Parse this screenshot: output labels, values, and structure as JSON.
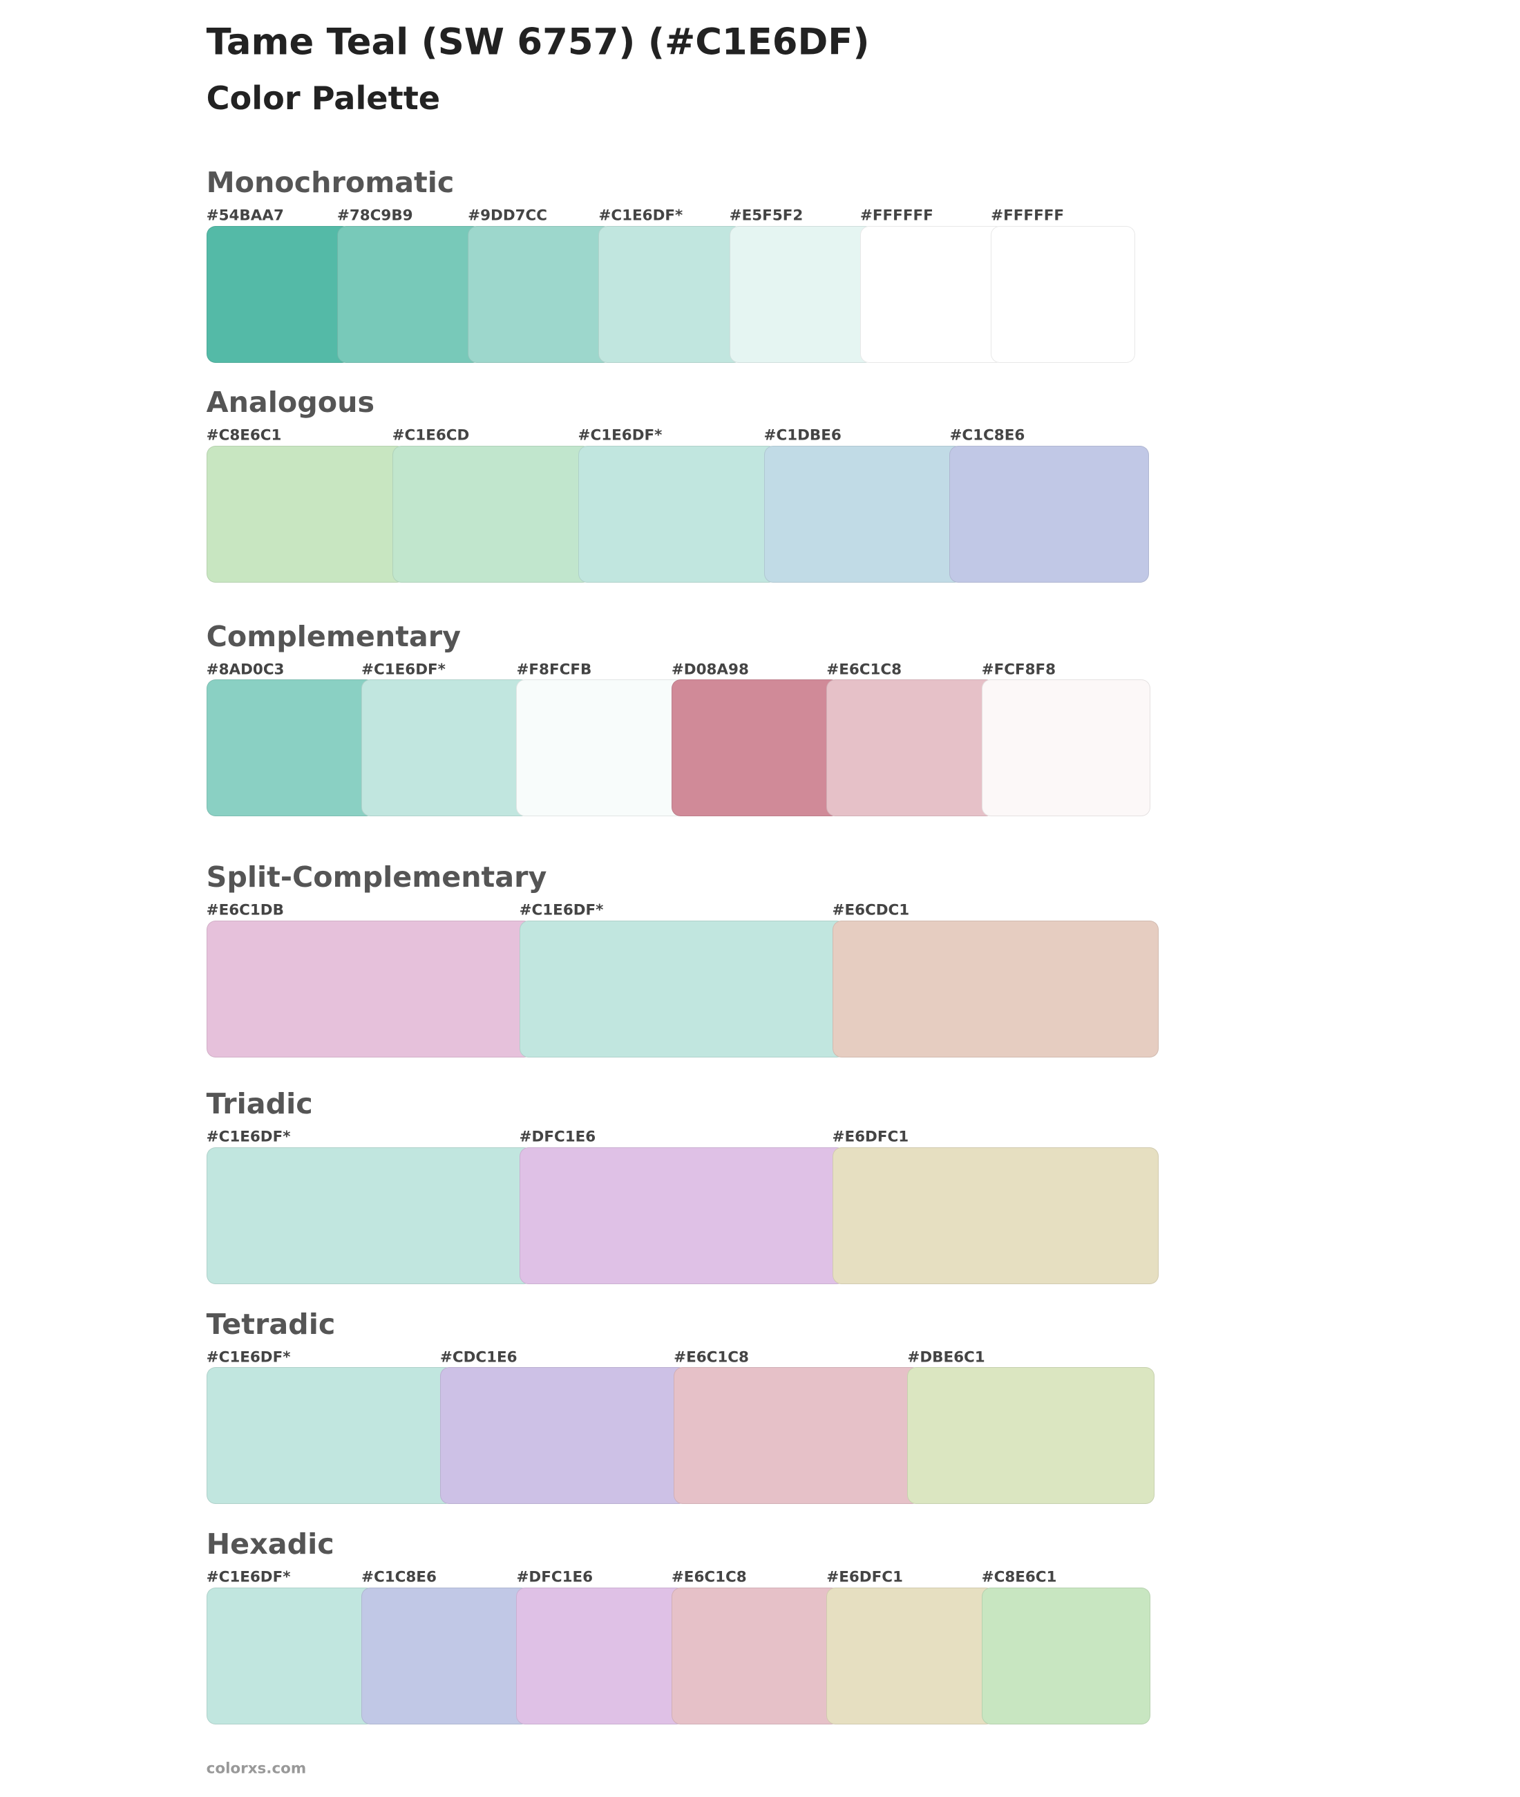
{
  "header": {
    "title": "Tame Teal (SW 6757) (#C1E6DF)",
    "subtitle": "Color Palette"
  },
  "sections": [
    {
      "title": "Monochromatic",
      "swatches": [
        {
          "label": "#54BAA7",
          "color": "#54baa7"
        },
        {
          "label": "#78C9B9",
          "color": "#78c9b9"
        },
        {
          "label": "#9DD7CC",
          "color": "#9dd7cc"
        },
        {
          "label": "#C1E6DF*",
          "color": "#c1e6df"
        },
        {
          "label": "#E5F5F2",
          "color": "#e5f5f2"
        },
        {
          "label": "#FFFFFF",
          "color": "#ffffff"
        },
        {
          "label": "#FFFFFF",
          "color": "#ffffff"
        }
      ]
    },
    {
      "title": "Analogous",
      "swatches": [
        {
          "label": "#C8E6C1",
          "color": "#c8e6c1"
        },
        {
          "label": "#C1E6CD",
          "color": "#c1e6cd"
        },
        {
          "label": "#C1E6DF*",
          "color": "#c1e6df"
        },
        {
          "label": "#C1DBE6",
          "color": "#c1dbe6"
        },
        {
          "label": "#C1C8E6",
          "color": "#c1c8e6"
        }
      ]
    },
    {
      "title": "Complementary",
      "swatches": [
        {
          "label": "#8AD0C3",
          "color": "#8ad0c3"
        },
        {
          "label": "#C1E6DF*",
          "color": "#c1e6df"
        },
        {
          "label": "#F8FCFB",
          "color": "#f8fcfb"
        },
        {
          "label": "#D08A98",
          "color": "#d08a98"
        },
        {
          "label": "#E6C1C8",
          "color": "#e6c1c8"
        },
        {
          "label": "#FCF8F8",
          "color": "#fcf8f8"
        }
      ]
    },
    {
      "title": "Split-Complementary",
      "swatches": [
        {
          "label": "#E6C1DB",
          "color": "#e6c1db"
        },
        {
          "label": "#C1E6DF*",
          "color": "#c1e6df"
        },
        {
          "label": "#E6CDC1",
          "color": "#e6cdc1"
        }
      ]
    },
    {
      "title": "Triadic",
      "swatches": [
        {
          "label": "#C1E6DF*",
          "color": "#c1e6df"
        },
        {
          "label": "#DFC1E6",
          "color": "#dfc1e6"
        },
        {
          "label": "#E6DFC1",
          "color": "#e6dfc1"
        }
      ]
    },
    {
      "title": "Tetradic",
      "swatches": [
        {
          "label": "#C1E6DF*",
          "color": "#c1e6df"
        },
        {
          "label": "#CDC1E6",
          "color": "#cdc1e6"
        },
        {
          "label": "#E6C1C8",
          "color": "#e6c1c8"
        },
        {
          "label": "#DBE6C1",
          "color": "#dbe6c1"
        }
      ]
    },
    {
      "title": "Hexadic",
      "swatches": [
        {
          "label": "#C1E6DF*",
          "color": "#c1e6df"
        },
        {
          "label": "#C1C8E6",
          "color": "#c1c8e6"
        },
        {
          "label": "#DFC1E6",
          "color": "#dfc1e6"
        },
        {
          "label": "#E6C1C8",
          "color": "#e6c1c8"
        },
        {
          "label": "#E6DFC1",
          "color": "#e6dfc1"
        },
        {
          "label": "#C8E6C1",
          "color": "#c8e6c1"
        }
      ]
    }
  ],
  "footer": "colorxs.com"
}
